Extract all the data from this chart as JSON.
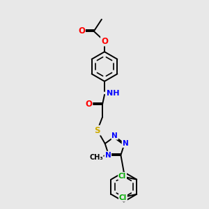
{
  "bg_color": "#e8e8e8",
  "bond_color": "#000000",
  "bond_width": 1.4,
  "atom_colors": {
    "N": "#0000ff",
    "O": "#ff0000",
    "S": "#ccaa00",
    "Cl": "#00aa00",
    "C": "#000000",
    "H": "#000000"
  },
  "font_size": 7.5,
  "fig_size": [
    3.0,
    3.0
  ],
  "dpi": 100,
  "xlim": [
    0,
    10
  ],
  "ylim": [
    0,
    10
  ]
}
